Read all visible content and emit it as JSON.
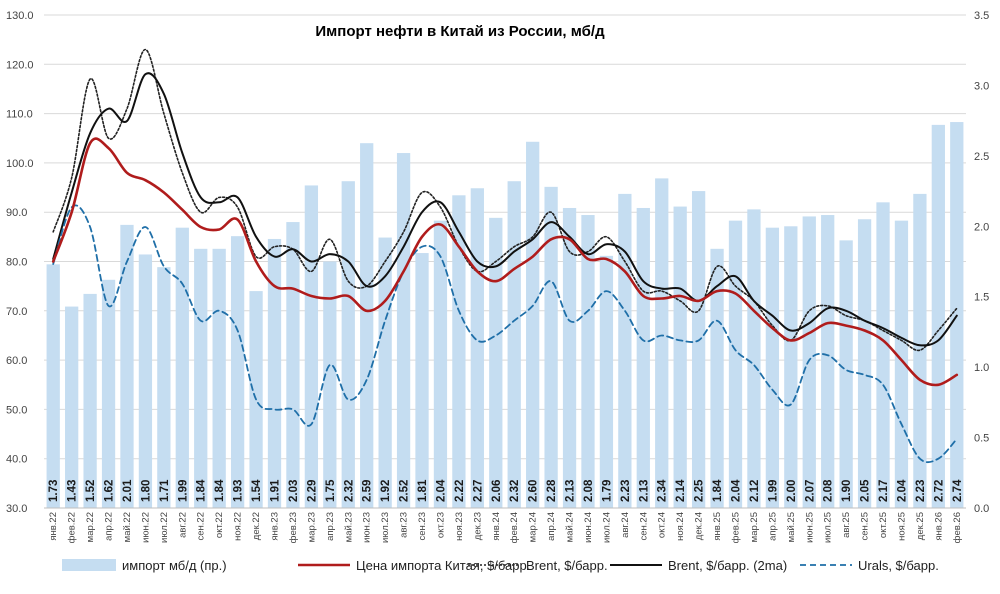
{
  "chart_data": {
    "type": "bar+line",
    "title": "Импорт нефти в Китай из России, мб/д",
    "categories": [
      "янв.22",
      "фев.22",
      "мар.22",
      "апр.22",
      "май.22",
      "июн.22",
      "июл.22",
      "авг.22",
      "сен.22",
      "окт.22",
      "ноя.22",
      "дек.22",
      "янв.23",
      "фев.23",
      "мар.23",
      "апр.23",
      "май.23",
      "июн.23",
      "июл.23",
      "авг.23",
      "сен.23",
      "окт.23",
      "ноя.23",
      "дек.23",
      "янв.24",
      "фев.24",
      "мар.24",
      "апр.24",
      "май.24",
      "июн.24",
      "июл.24",
      "авг.24",
      "сен.24",
      "окт.24",
      "ноя.24",
      "дек.24",
      "янв.25",
      "фев.25",
      "мар.25",
      "апр.25",
      "май.25",
      "июн.25",
      "июл.25",
      "авг.25",
      "сен.25",
      "окт.25",
      "ноя.25",
      "дек.25",
      "янв.26",
      "фев.26"
    ],
    "left_axis": {
      "min": 30,
      "max": 130,
      "step": 10,
      "ticks": [
        "30.0",
        "40.0",
        "50.0",
        "60.0",
        "70.0",
        "80.0",
        "90.0",
        "100.0",
        "110.0",
        "120.0",
        "130.0"
      ]
    },
    "right_axis": {
      "min": 0,
      "max": 3.5,
      "step": 0.5,
      "ticks": [
        "0.0",
        "0.5",
        "1.0",
        "1.5",
        "2.0",
        "2.5",
        "3.0",
        "3.5"
      ]
    },
    "bars": {
      "name": "импорт мб/д (пр.)",
      "color": "#c5ddf1",
      "labels": [
        "1.73",
        "1.43",
        "1.52",
        "1.62",
        "2.01",
        "1.80",
        "1.71",
        "1.99",
        "1.84",
        "1.84",
        "1.93",
        "1.54",
        "1.91",
        "2.03",
        "2.29",
        "1.75",
        "2.32",
        "2.59",
        "1.92",
        "2.52",
        "1.81",
        "2.04",
        "2.22",
        "2.27",
        "2.06",
        "2.32",
        "2.60",
        "2.28",
        "2.13",
        "2.08",
        "1.79",
        "2.23",
        "2.13",
        "2.34",
        "2.14",
        "2.25",
        "1.84",
        "2.04",
        "2.12",
        "1.99",
        "2.00",
        "2.07",
        "2.08",
        "1.90",
        "2.05",
        "2.17",
        "2.04",
        "2.23",
        "2.72",
        "2.74"
      ],
      "values": [
        1.73,
        1.43,
        1.52,
        1.62,
        2.01,
        1.8,
        1.71,
        1.99,
        1.84,
        1.84,
        1.93,
        1.54,
        1.91,
        2.03,
        2.29,
        1.75,
        2.32,
        2.59,
        1.92,
        2.52,
        1.81,
        2.04,
        2.22,
        2.27,
        2.06,
        2.32,
        2.6,
        2.28,
        2.13,
        2.08,
        1.79,
        2.23,
        2.13,
        2.34,
        2.14,
        2.25,
        1.84,
        2.04,
        2.12,
        1.99,
        2.0,
        2.07,
        2.08,
        1.9,
        2.05,
        2.17,
        2.04,
        2.23,
        2.72,
        2.74
      ]
    },
    "series": [
      {
        "name": "Цена импорта Китая, $/барр.",
        "color": "#b01c1c",
        "dash": "",
        "width": 2.6,
        "values": [
          80,
          90,
          104,
          103,
          98,
          96.5,
          94,
          90.5,
          87,
          86.5,
          88.5,
          80,
          75,
          74.5,
          73,
          72.5,
          73,
          70,
          72,
          78,
          85,
          87.5,
          83,
          78,
          76,
          78.5,
          81,
          84.5,
          84.5,
          80.5,
          80.5,
          78,
          73,
          72.5,
          73,
          72,
          74,
          73.5,
          70,
          66.5,
          64,
          65.5,
          67.5,
          67,
          66,
          64,
          60,
          56,
          55,
          57
        ]
      },
      {
        "name": "Brent, $/барр.",
        "color": "#222222",
        "dash": "2 2",
        "width": 1.6,
        "values": [
          86,
          97,
          117,
          105,
          111,
          123,
          110,
          98,
          90,
          93,
          91,
          81,
          83,
          82.5,
          78,
          84.5,
          76,
          75,
          80,
          86,
          94,
          91,
          83,
          78,
          80,
          83,
          85,
          90,
          82,
          82,
          85,
          80,
          74,
          74,
          72,
          70,
          79,
          75,
          72,
          67,
          64,
          70,
          71,
          69,
          68,
          66,
          64,
          62,
          66,
          70.5
        ]
      },
      {
        "name": "Brent, $/барр. (2ma)",
        "color": "#111111",
        "dash": "",
        "width": 2,
        "values": [
          80.5,
          94,
          106,
          111,
          108.5,
          118,
          114,
          102,
          93,
          92,
          93,
          85,
          81,
          82.5,
          80,
          81.5,
          80,
          75,
          77,
          83,
          90,
          92,
          86,
          80,
          79,
          82,
          84.5,
          88,
          85,
          81.5,
          83.5,
          82,
          76,
          74.5,
          74.5,
          72,
          75,
          77,
          72,
          69,
          66,
          67.5,
          70.5,
          70,
          68,
          66.5,
          64.5,
          63,
          64,
          69
        ]
      },
      {
        "name": "Urals, $/барр.",
        "color": "#1f6fa8",
        "dash": "6 4",
        "width": 1.8,
        "values": [
          79.5,
          91,
          87,
          71,
          80,
          87,
          79,
          75.5,
          68,
          70,
          66,
          52,
          50,
          50,
          47,
          59,
          52,
          56,
          68,
          78,
          83,
          81,
          70,
          64,
          65,
          68,
          71,
          76,
          68,
          70,
          74,
          70,
          64,
          65,
          64,
          64,
          68,
          62,
          59,
          54,
          51,
          60,
          61,
          58,
          57,
          55,
          47,
          40,
          40,
          44
        ]
      }
    ],
    "legend": [
      "импорт мб/д (пр.)",
      "Цена импорта Китая, $/барр.",
      "Brent, $/барр.",
      "Brent, $/барр. (2ma)",
      "Urals, $/барр."
    ]
  }
}
